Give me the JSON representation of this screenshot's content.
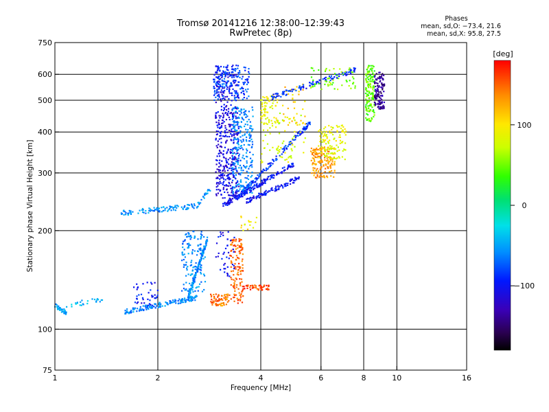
{
  "header": {
    "title_line1": "Tromsø 20141216 12:38:00–12:39:43",
    "title_line2": "RwPretec (8p)"
  },
  "phase_stats": {
    "heading": "Phases",
    "line_o": "mean, sd,O: −73.4, 21.6",
    "line_x": "mean, sd,X:  95.8, 27.5"
  },
  "colorbar": {
    "unit_label": "[deg]",
    "tick_values": [
      100,
      0,
      -100
    ],
    "tick_labels": [
      "100",
      "0",
      "−100"
    ],
    "range": [
      -180,
      180
    ]
  },
  "chart_data": {
    "type": "scatter",
    "xlabel": "Frequency [MHz]",
    "ylabel": "Stationary phase Virtual Height [km]",
    "xscale": "log",
    "yscale": "log",
    "xlim": [
      1,
      16
    ],
    "ylim": [
      75,
      750
    ],
    "xticks": [
      1,
      2,
      4,
      6,
      8,
      10,
      16
    ],
    "xtick_labels": [
      "1",
      "2",
      "4",
      "6",
      "8",
      "10",
      "16"
    ],
    "yticks": [
      75,
      100,
      200,
      300,
      400,
      500,
      600,
      750
    ],
    "ytick_labels": [
      "75",
      "100",
      "200",
      "300",
      "400",
      "500",
      "600",
      "750"
    ],
    "grid": true,
    "color_by": "phase [deg]",
    "clusters": [
      {
        "kind": "line",
        "f0": 1.0,
        "f1": 1.08,
        "h0": 118,
        "h1": 112,
        "phase": -50,
        "n": 40
      },
      {
        "kind": "line",
        "f0": 1.08,
        "f1": 1.45,
        "h0": 118,
        "h1": 125,
        "phase": -45,
        "n": 25
      },
      {
        "kind": "line",
        "f0": 1.6,
        "f1": 2.6,
        "h0": 113,
        "h1": 125,
        "phase": -60,
        "n": 160
      },
      {
        "kind": "line",
        "f0": 2.45,
        "f1": 2.8,
        "h0": 125,
        "h1": 190,
        "phase": -55,
        "n": 130
      },
      {
        "kind": "box",
        "f0": 2.35,
        "f1": 2.75,
        "h0": 130,
        "h1": 200,
        "phase": -60,
        "n": 140
      },
      {
        "kind": "box",
        "f0": 1.7,
        "f1": 2.0,
        "h0": 118,
        "h1": 140,
        "phase": -95,
        "n": 40
      },
      {
        "kind": "line",
        "f0": 1.55,
        "f1": 2.6,
        "h0": 226,
        "h1": 238,
        "phase": -55,
        "n": 100
      },
      {
        "kind": "line",
        "f0": 2.6,
        "f1": 2.85,
        "h0": 238,
        "h1": 268,
        "phase": -55,
        "n": 25
      },
      {
        "kind": "box",
        "f0": 2.85,
        "f1": 3.05,
        "h0": 118,
        "h1": 128,
        "phase": 150,
        "n": 40
      },
      {
        "kind": "box",
        "f0": 3.05,
        "f1": 3.25,
        "h0": 118,
        "h1": 128,
        "phase": 135,
        "n": 30
      },
      {
        "kind": "box",
        "f0": 3.25,
        "f1": 3.55,
        "h0": 120,
        "h1": 190,
        "phase": 150,
        "n": 140
      },
      {
        "kind": "line",
        "f0": 3.55,
        "f1": 4.25,
        "h0": 134,
        "h1": 134,
        "phase": 160,
        "n": 45
      },
      {
        "kind": "box",
        "f0": 2.95,
        "f1": 3.35,
        "h0": 145,
        "h1": 200,
        "phase": -100,
        "n": 40
      },
      {
        "kind": "box",
        "f0": 2.95,
        "f1": 3.45,
        "h0": 250,
        "h1": 600,
        "phase": -110,
        "n": 450
      },
      {
        "kind": "box",
        "f0": 3.3,
        "f1": 3.8,
        "h0": 260,
        "h1": 480,
        "phase": -60,
        "n": 250
      },
      {
        "kind": "box",
        "f0": 2.9,
        "f1": 3.7,
        "h0": 500,
        "h1": 640,
        "phase": -80,
        "n": 140
      },
      {
        "kind": "line",
        "f0": 3.1,
        "f1": 5.0,
        "h0": 238,
        "h1": 320,
        "phase": -100,
        "n": 160
      },
      {
        "kind": "line",
        "f0": 3.4,
        "f1": 5.6,
        "h0": 250,
        "h1": 430,
        "phase": -85,
        "n": 140
      },
      {
        "kind": "line",
        "f0": 3.6,
        "f1": 5.2,
        "h0": 245,
        "h1": 290,
        "phase": -100,
        "n": 100
      },
      {
        "kind": "box",
        "f0": 4.0,
        "f1": 4.5,
        "h0": 420,
        "h1": 520,
        "phase": 90,
        "n": 70
      },
      {
        "kind": "box",
        "f0": 4.0,
        "f1": 5.4,
        "h0": 320,
        "h1": 460,
        "phase": 80,
        "n": 70
      },
      {
        "kind": "box",
        "f0": 5.6,
        "f1": 6.6,
        "h0": 290,
        "h1": 360,
        "phase": 130,
        "n": 160
      },
      {
        "kind": "box",
        "f0": 5.9,
        "f1": 7.1,
        "h0": 330,
        "h1": 420,
        "phase": 85,
        "n": 120
      },
      {
        "kind": "box",
        "f0": 4.6,
        "f1": 5.4,
        "h0": 420,
        "h1": 560,
        "phase": 110,
        "n": 40
      },
      {
        "kind": "line",
        "f0": 4.3,
        "f1": 7.6,
        "h0": 510,
        "h1": 620,
        "phase": -90,
        "n": 110
      },
      {
        "kind": "box",
        "f0": 5.6,
        "f1": 7.6,
        "h0": 540,
        "h1": 630,
        "phase": 55,
        "n": 60
      },
      {
        "kind": "box",
        "f0": 8.1,
        "f1": 8.6,
        "h0": 430,
        "h1": 640,
        "phase": 45,
        "n": 160
      },
      {
        "kind": "box",
        "f0": 8.6,
        "f1": 9.2,
        "h0": 470,
        "h1": 610,
        "phase": -140,
        "n": 120
      },
      {
        "kind": "box",
        "f0": 2.95,
        "f1": 3.35,
        "h0": 590,
        "h1": 640,
        "phase": -95,
        "n": 40
      },
      {
        "kind": "box",
        "f0": 3.5,
        "f1": 3.9,
        "h0": 200,
        "h1": 222,
        "phase": 95,
        "n": 15
      }
    ]
  }
}
